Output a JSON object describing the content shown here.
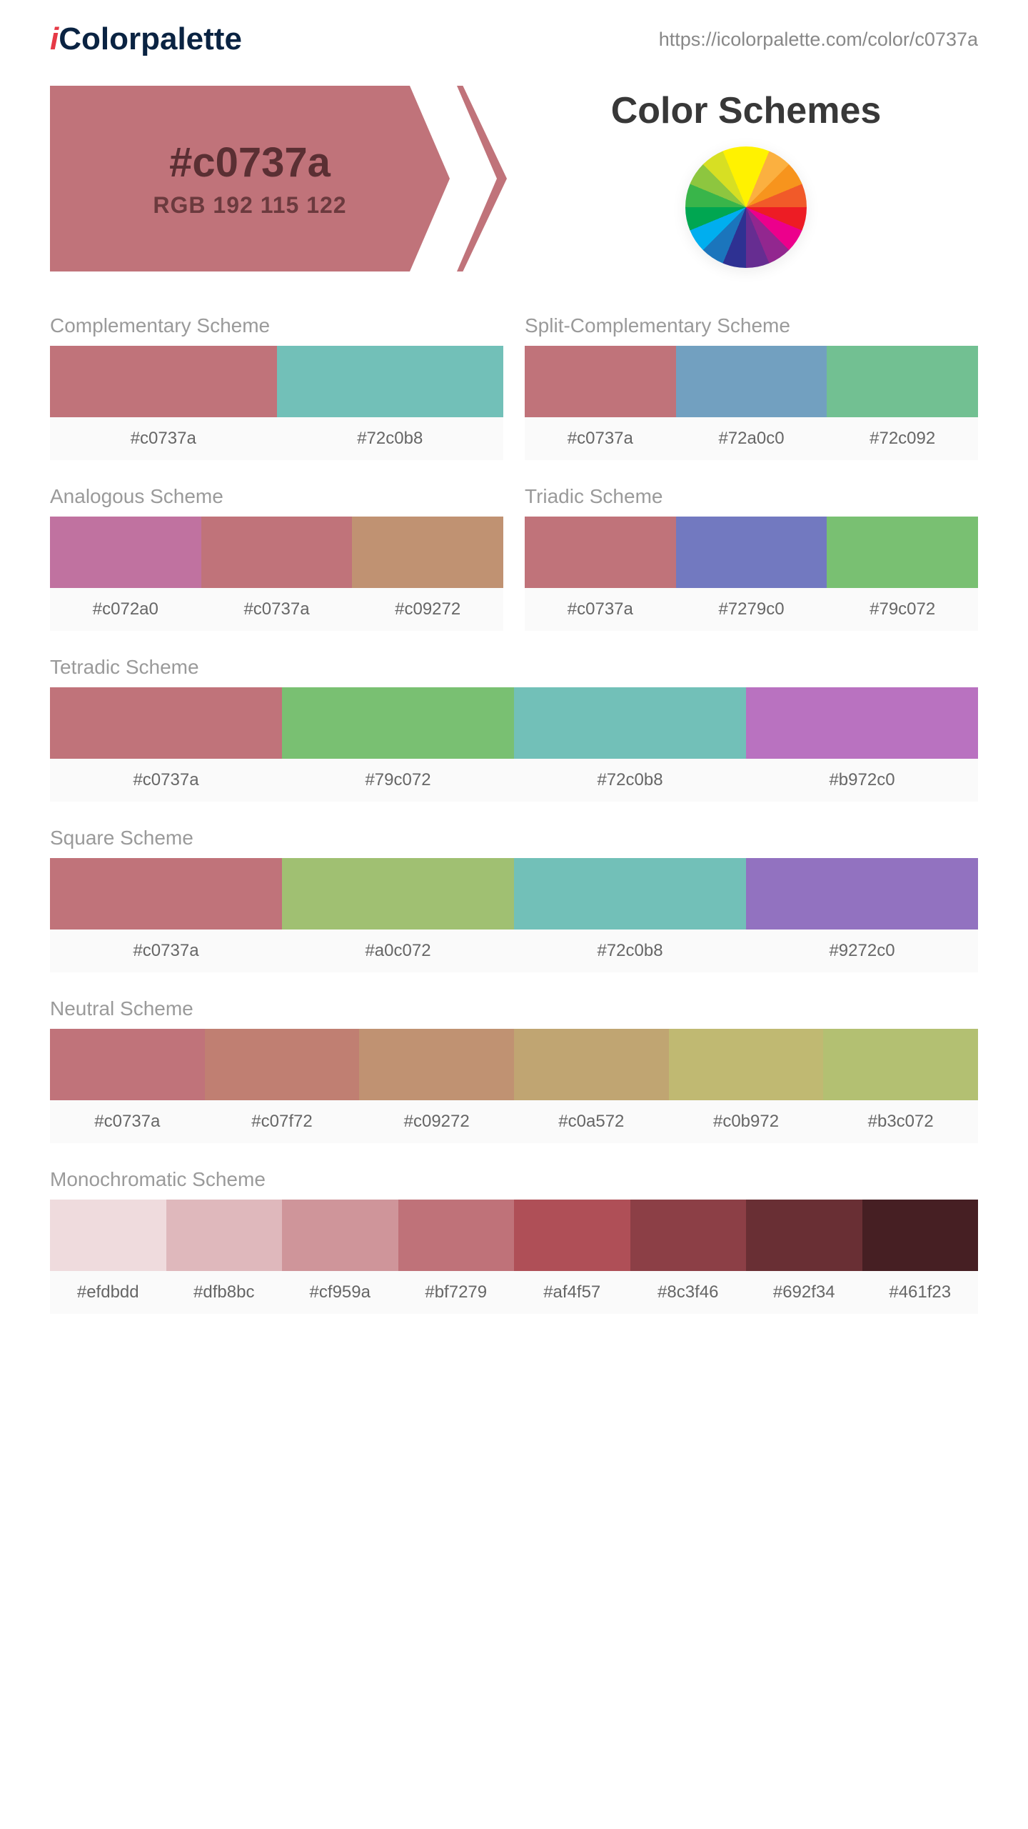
{
  "logo": {
    "prefix": "i",
    "rest": "Colorpalette"
  },
  "url": "https://icolorpalette.com/color/c0737a",
  "hero": {
    "hex": "#c0737a",
    "rgb": "RGB 192 115 122",
    "main_color": "#c0737a",
    "hex_text_color": "#5a2f33",
    "rgb_text_color": "#6b3a3e"
  },
  "schemes_title": "Color Schemes",
  "schemes": [
    {
      "layout": "half-left",
      "title": "Complementary Scheme",
      "colors": [
        "#c0737a",
        "#72c0b8"
      ]
    },
    {
      "layout": "half-right",
      "title": "Split-Complementary Scheme",
      "colors": [
        "#c0737a",
        "#72a0c0",
        "#72c092"
      ]
    },
    {
      "layout": "half-left",
      "title": "Analogous Scheme",
      "colors": [
        "#c072a0",
        "#c0737a",
        "#c09272"
      ]
    },
    {
      "layout": "half-right",
      "title": "Triadic Scheme",
      "colors": [
        "#c0737a",
        "#7279c0",
        "#79c072"
      ]
    },
    {
      "layout": "full",
      "title": "Tetradic Scheme",
      "colors": [
        "#c0737a",
        "#79c072",
        "#72c0b8",
        "#b972c0"
      ]
    },
    {
      "layout": "full",
      "title": "Square Scheme",
      "colors": [
        "#c0737a",
        "#a0c072",
        "#72c0b8",
        "#9272c0"
      ]
    },
    {
      "layout": "full",
      "title": "Neutral Scheme",
      "colors": [
        "#c0737a",
        "#c07f72",
        "#c09272",
        "#c0a572",
        "#c0b972",
        "#b3c072"
      ]
    },
    {
      "layout": "full",
      "title": "Monochromatic Scheme",
      "colors": [
        "#efdbdd",
        "#dfb8bc",
        "#cf959a",
        "#bf7279",
        "#af4f57",
        "#8c3f46",
        "#692f34",
        "#461f23"
      ]
    }
  ],
  "style": {
    "swatch_height": 100,
    "title_color": "#9a9a9a",
    "label_color": "#666666",
    "label_bg": "#fafafa",
    "title_fontsize": 28,
    "label_fontsize": 24
  }
}
